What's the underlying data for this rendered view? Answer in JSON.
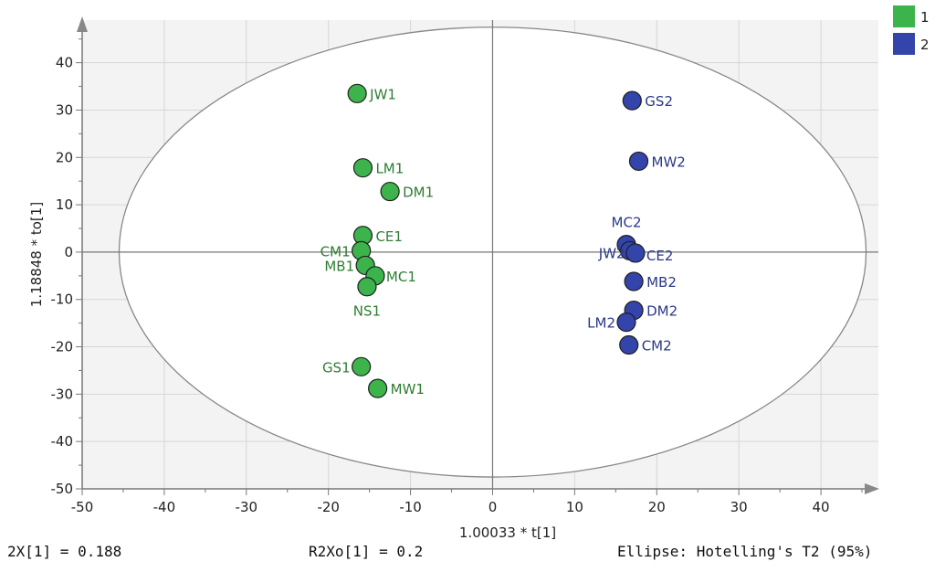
{
  "chart_data": {
    "type": "scatter",
    "title": "",
    "xlabel": "1.00033 * t[1]",
    "ylabel": "1.18848 * to[1]",
    "xlim": [
      -50,
      47
    ],
    "ylim": [
      -50,
      49
    ],
    "x_ticks": [
      -50,
      -40,
      -30,
      -20,
      -10,
      0,
      10,
      20,
      30,
      40
    ],
    "y_ticks": [
      -50,
      -40,
      -30,
      -20,
      -10,
      0,
      10,
      20,
      30,
      40
    ],
    "grid": true,
    "legend_position": "top-right",
    "ellipse": {
      "label": "Ellipse: Hotelling's T2 (95%)",
      "center": [
        0,
        0
      ],
      "semi_x": 45.5,
      "semi_y": 47.5
    },
    "series": [
      {
        "name": "1",
        "color": "#3cb44b",
        "label_color": "#2e7d32",
        "points": [
          {
            "label": "JW1",
            "x": -16.5,
            "y": 33.5
          },
          {
            "label": "LM1",
            "x": -15.8,
            "y": 17.8
          },
          {
            "label": "DM1",
            "x": -12.5,
            "y": 12.8
          },
          {
            "label": "CE1",
            "x": -15.8,
            "y": 3.5
          },
          {
            "label": "CM1",
            "x": -16.0,
            "y": 0.3
          },
          {
            "label": "MB1",
            "x": -15.5,
            "y": -2.8
          },
          {
            "label": "MC1",
            "x": -14.3,
            "y": -5.0
          },
          {
            "label": "NS1",
            "x": -15.3,
            "y": -7.3
          },
          {
            "label": "GS1",
            "x": -16.0,
            "y": -24.2
          },
          {
            "label": "MW1",
            "x": -14.0,
            "y": -28.8
          }
        ]
      },
      {
        "name": "2",
        "color": "#3344aa",
        "label_color": "#2a3888",
        "points": [
          {
            "label": "GS2",
            "x": 17.0,
            "y": 32.0
          },
          {
            "label": "MW2",
            "x": 17.8,
            "y": 19.2
          },
          {
            "label": "MC2",
            "x": 16.3,
            "y": 1.6
          },
          {
            "label": "JW2",
            "x": 16.7,
            "y": 0.3
          },
          {
            "label": "CE2",
            "x": 17.4,
            "y": -0.2
          },
          {
            "label": "MB2",
            "x": 17.2,
            "y": -6.2
          },
          {
            "label": "DM2",
            "x": 17.2,
            "y": -12.3
          },
          {
            "label": "LM2",
            "x": 16.3,
            "y": -14.8
          },
          {
            "label": "CM2",
            "x": 16.6,
            "y": -19.6
          }
        ]
      }
    ]
  },
  "footer": {
    "left": "2X[1] = 0.188",
    "mid": "R2Xo[1] = 0.2",
    "right": "Ellipse: Hotelling's T2 (95%)"
  }
}
